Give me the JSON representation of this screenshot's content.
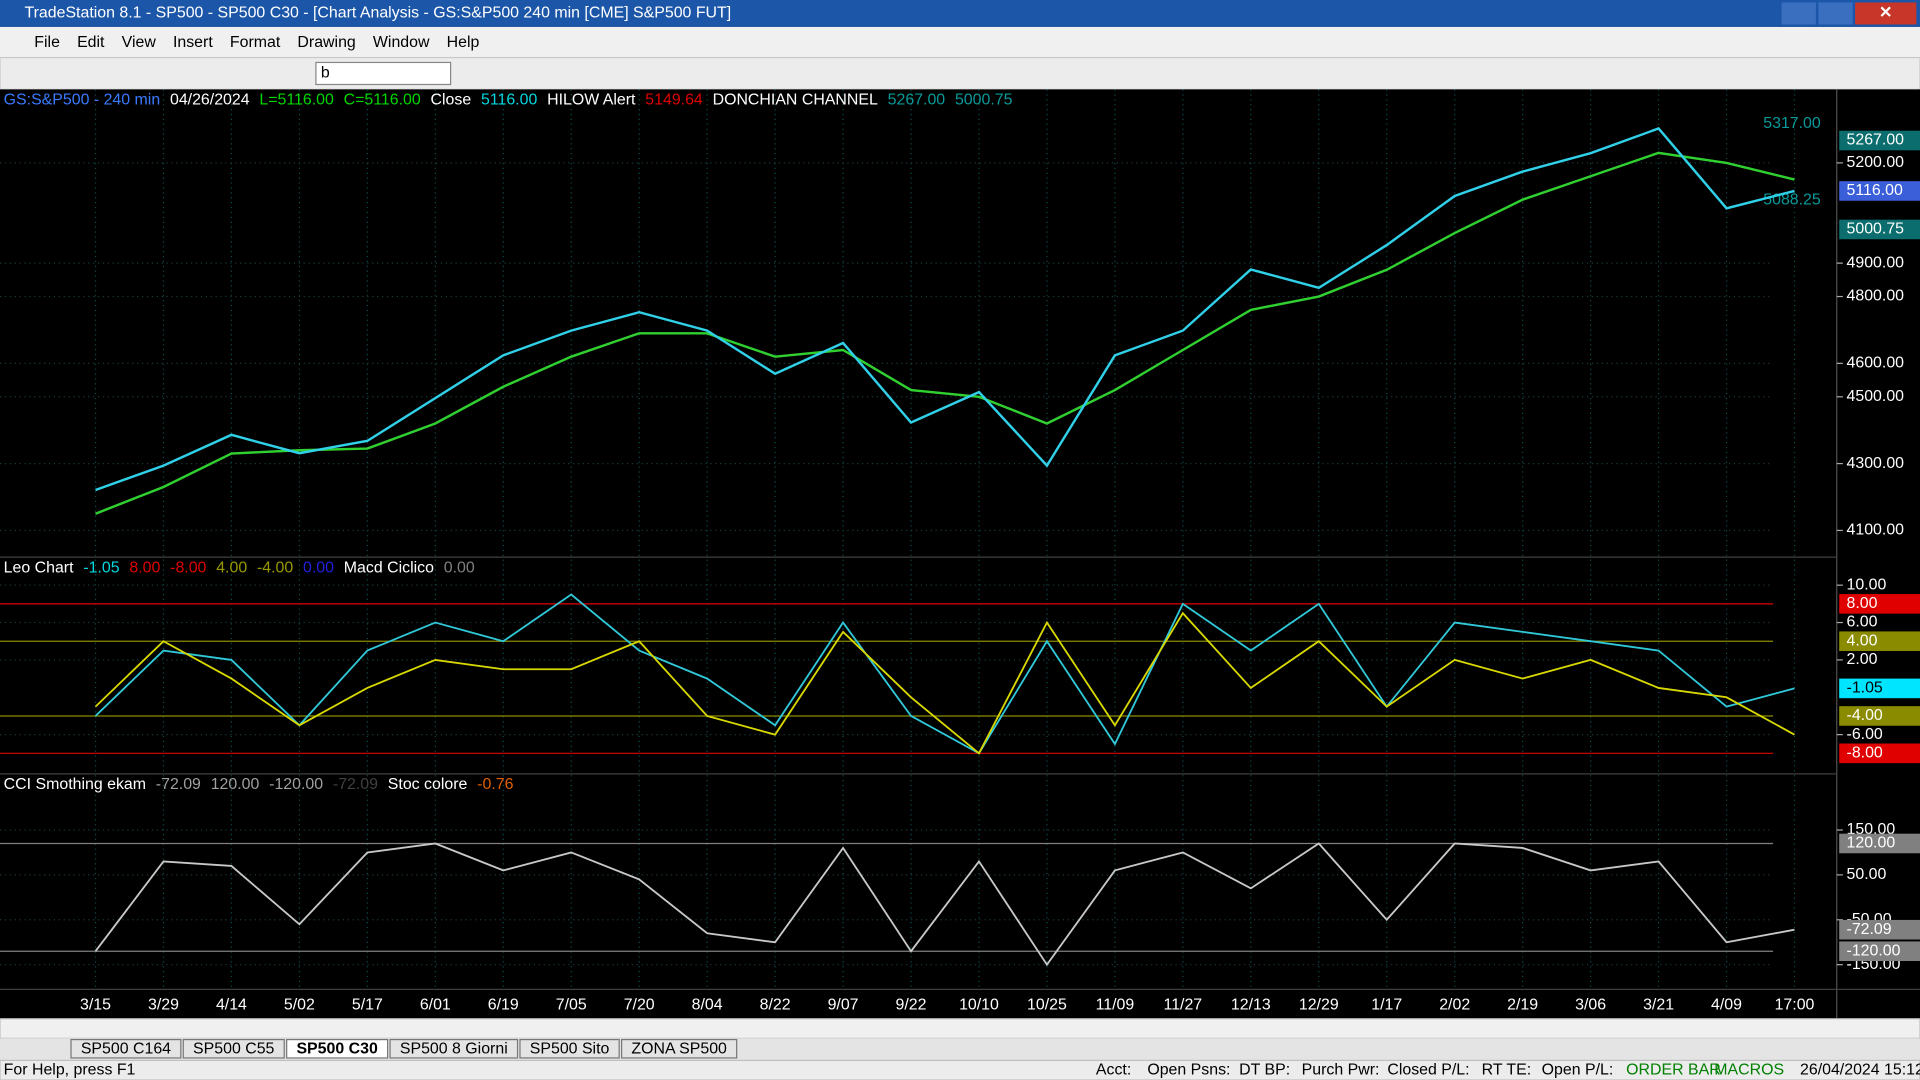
{
  "window": {
    "title": "TradeStation 8.1 - SP500 - SP500 C30 - [Chart Analysis - GS:S&P500  240 min  [CME] S&P500 FUT]",
    "menu": [
      "File",
      "Edit",
      "View",
      "Insert",
      "Format",
      "Drawing",
      "Window",
      "Help"
    ],
    "symbol_box": "b"
  },
  "chart": {
    "dates": [
      "3/15",
      "3/29",
      "4/14",
      "5/02",
      "5/17",
      "6/01",
      "6/19",
      "7/05",
      "7/20",
      "8/04",
      "8/22",
      "9/07",
      "9/22",
      "10/10",
      "10/25",
      "11/09",
      "11/27",
      "12/13",
      "12/29",
      "1/17",
      "2/02",
      "2/19",
      "3/06",
      "3/21",
      "4/09",
      "17:00"
    ],
    "price_pane": {
      "header": [
        {
          "text": "GS:S&P500 - 240 min",
          "color": "#3a7bff"
        },
        {
          "text": "04/26/2024",
          "color": "#ffffff"
        },
        {
          "text": "L=5116.00",
          "color": "#00d800"
        },
        {
          "text": "C=5116.00",
          "color": "#00d800"
        },
        {
          "text": "Close",
          "color": "#ffffff"
        },
        {
          "text": "5116.00",
          "color": "#00d8e0"
        },
        {
          "text": "HILOW Alert",
          "color": "#ffffff"
        },
        {
          "text": "5149.64",
          "color": "#e00000"
        },
        {
          "text": "DONCHIAN CHANNEL",
          "color": "#ffffff"
        },
        {
          "text": "5267.00",
          "color": "#0a9a9a"
        },
        {
          "text": "5000.75",
          "color": "#0a9a9a"
        }
      ],
      "ylim": [
        4020,
        5420
      ],
      "yticks": [
        {
          "value": 4100,
          "label": "4100.00"
        },
        {
          "value": 4300,
          "label": "4300.00"
        },
        {
          "value": 4500,
          "label": "4500.00"
        },
        {
          "value": 4600,
          "label": "4600.00"
        },
        {
          "value": 4800,
          "label": "4800.00"
        },
        {
          "value": 4900,
          "label": "4900.00"
        },
        {
          "value": 5200,
          "label": "5200.00"
        }
      ],
      "price": {
        "color": "#30d0e8",
        "values": [
          4221,
          4294,
          4386,
          4331,
          4368,
          4496,
          4624,
          4698,
          4753,
          4698,
          4569,
          4661,
          4423,
          4514,
          4294,
          4624,
          4698,
          4881,
          4826,
          4954,
          5101,
          5174,
          5229,
          5303,
          5064,
          5116
        ]
      },
      "average": {
        "color": "#30d030",
        "values": [
          4150,
          4230,
          4330,
          4340,
          4345,
          4420,
          4530,
          4620,
          4690,
          4690,
          4620,
          4640,
          4520,
          4500,
          4420,
          4520,
          4640,
          4760,
          4800,
          4880,
          4990,
          5090,
          5160,
          5230,
          5200,
          5150
        ]
      },
      "markers": [
        {
          "value": 5267,
          "label": "5267.00",
          "color": "#0b6d6d"
        },
        {
          "value": 5116,
          "label": "5116.00",
          "color": "#3a5fd9"
        },
        {
          "value": 5000.75,
          "label": "5000.75",
          "color": "#0b6d6d"
        }
      ],
      "annotations": [
        {
          "value": 5317,
          "label": "5317.00"
        },
        {
          "value": 5088.25,
          "label": "5088.25"
        }
      ]
    },
    "macd_pane": {
      "header": [
        {
          "text": "Leo Chart",
          "color": "#ffffff"
        },
        {
          "text": "-1.05",
          "color": "#00d8e0"
        },
        {
          "text": "8.00",
          "color": "#e00000"
        },
        {
          "text": "-8.00",
          "color": "#e00000"
        },
        {
          "text": "4.00",
          "color": "#9a9a00"
        },
        {
          "text": "-4.00",
          "color": "#9a9a00"
        },
        {
          "text": "0.00",
          "color": "#2020e0"
        },
        {
          "text": "Macd Ciclico",
          "color": "#ffffff"
        },
        {
          "text": "0.00",
          "color": "#808080"
        }
      ],
      "ylim": [
        -10.2,
        13
      ],
      "yticks": [
        {
          "value": 10,
          "label": "10.00"
        },
        {
          "value": 6,
          "label": "6.00"
        },
        {
          "value": 2,
          "label": "2.00"
        },
        {
          "value": -6,
          "label": "-6.00"
        }
      ],
      "lines": [
        {
          "color": "#30c8d8",
          "values": [
            -4,
            3,
            2,
            -5,
            3,
            6,
            4,
            9,
            3,
            0,
            -5,
            6,
            -4,
            -8,
            4,
            -7,
            8,
            3,
            8,
            -3,
            6,
            5,
            4,
            3,
            -3,
            -1.05
          ]
        },
        {
          "color": "#d8d800",
          "values": [
            -3,
            4,
            0,
            -5,
            -1,
            2,
            1,
            1,
            4,
            -4,
            -6,
            5,
            -2,
            -8,
            6,
            -5,
            7,
            -1,
            4,
            -3,
            2,
            0,
            2,
            -1,
            -2,
            -6
          ]
        }
      ],
      "levels": [
        {
          "value": 8,
          "label": "8.00",
          "color": "#e00000"
        },
        {
          "value": 4,
          "label": "4.00",
          "color": "#8b8b00"
        },
        {
          "value": -1.05,
          "label": "-1.05",
          "color": "#00e5ff"
        },
        {
          "value": -4,
          "label": "-4.00",
          "color": "#8b8b00"
        },
        {
          "value": -8,
          "label": "-8.00",
          "color": "#e00000"
        }
      ]
    },
    "cci_pane": {
      "header": [
        {
          "text": "CCI Smothing ekam",
          "color": "#ffffff"
        },
        {
          "text": "-72.09",
          "color": "#a0a0a0"
        },
        {
          "text": "120.00",
          "color": "#a0a0a0"
        },
        {
          "text": "-120.00",
          "color": "#a0a0a0"
        },
        {
          "text": "-72.09",
          "color": "#404040"
        },
        {
          "text": "Stoc colore",
          "color": "#ffffff"
        },
        {
          "text": "-0.76",
          "color": "#e06000"
        }
      ],
      "ylim": [
        -205,
        275
      ],
      "yticks": [
        {
          "value": 150,
          "label": "150.00"
        },
        {
          "value": 50,
          "label": "50.00"
        },
        {
          "value": -50,
          "label": "-50.00"
        },
        {
          "value": -150,
          "label": "-150.00"
        }
      ],
      "lines": [
        {
          "color": "#c8c8c8",
          "values": [
            -120,
            80,
            70,
            -60,
            100,
            120,
            60,
            100,
            40,
            -80,
            -100,
            110,
            -120,
            80,
            -150,
            60,
            100,
            20,
            120,
            -50,
            120,
            110,
            60,
            80,
            -100,
            -72.09
          ]
        }
      ],
      "levels": [
        {
          "value": 120,
          "label": "120.00",
          "color": "#808080"
        },
        {
          "value": -72.09,
          "label": "-72.09",
          "color": "#808080"
        },
        {
          "value": -120,
          "label": "-120.00",
          "color": "#808080"
        }
      ]
    }
  },
  "sheet_tabs": [
    "SP500 C164",
    "SP500 C55",
    "SP500 C30",
    "SP500 8 Giorni",
    "SP500 Sito",
    "ZONA SP500"
  ],
  "active_tab": 2,
  "status": {
    "help": "For Help, press F1",
    "fields": [
      "Acct:",
      "Open Psns:",
      "DT BP:",
      "Purch Pwr:",
      "Closed P/L:",
      "RT TE:",
      "Open P/L:"
    ],
    "order_bar": "ORDER BAR",
    "macros": "MACROS",
    "datetime": "26/04/2024 15:12"
  }
}
